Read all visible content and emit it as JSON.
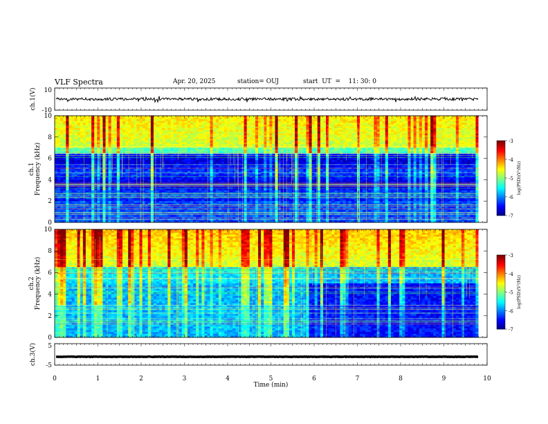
{
  "header": {
    "title": "VLF Spectra",
    "date": "Apr. 20, 2025",
    "station": "station= OUJ",
    "start": "start  UT  =    11: 30: 0"
  },
  "chart_data": [
    {
      "id": "ch1-waveform",
      "type": "line",
      "ylabel": "ch.1(V)",
      "ylim": [
        -10,
        10
      ],
      "yticks": [
        "10",
        "-10"
      ],
      "xlim": [
        0,
        10
      ],
      "signal_level": 0,
      "data_end_min": 9.8,
      "color": "#000000"
    },
    {
      "id": "ch1-spectrogram",
      "type": "heatmap",
      "ylabel": "ch.1\nFrequency (kHz)",
      "ylim": [
        0,
        10
      ],
      "yticks": [
        "0",
        "2",
        "4",
        "6",
        "8",
        "10"
      ],
      "xlim": [
        0,
        10
      ],
      "data_end_min": 9.8,
      "colorbar": {
        "label": "log(PSD)(V²/Hz)",
        "range": [
          -7,
          -3
        ],
        "ticks": [
          "-3",
          "-4",
          "-5",
          "-6",
          "-7"
        ]
      },
      "regimes": [
        {
          "time_min": [
            0,
            9.8
          ],
          "description": "broadband sferic noise, high above 6.5 kHz, low 2-6 kHz"
        }
      ]
    },
    {
      "id": "ch2-spectrogram",
      "type": "heatmap",
      "ylabel": "ch.2\nFrequency (kHz)",
      "ylim": [
        0,
        10
      ],
      "yticks": [
        "0",
        "2",
        "4",
        "6",
        "8",
        "10"
      ],
      "xlim": [
        0,
        10
      ],
      "data_end_min": 9.8,
      "colorbar": {
        "label": "log(PSD)(V²/Hz)",
        "range": [
          -7,
          -3
        ],
        "ticks": [
          "-3",
          "-4",
          "-5",
          "-6",
          "-7"
        ]
      },
      "regimes": [
        {
          "time_min": [
            0,
            5.85
          ],
          "description": "elevated cyan background 0-6 kHz"
        },
        {
          "time_min": [
            5.85,
            9.8
          ],
          "description": "quieter dark blue background below 5 kHz"
        }
      ]
    },
    {
      "id": "ch3-waveform",
      "type": "line",
      "ylabel": "ch.3(V)",
      "ylim": [
        -5,
        5
      ],
      "yticks": [
        "5",
        "-5"
      ],
      "xlim": [
        0,
        10
      ],
      "signal_level": -1.1,
      "data_end_min": 9.8,
      "color": "#000000"
    }
  ],
  "xaxis": {
    "label": "Time  (min)",
    "ticks": [
      "0",
      "1",
      "2",
      "3",
      "4",
      "5",
      "6",
      "7",
      "8",
      "9",
      "10"
    ]
  }
}
